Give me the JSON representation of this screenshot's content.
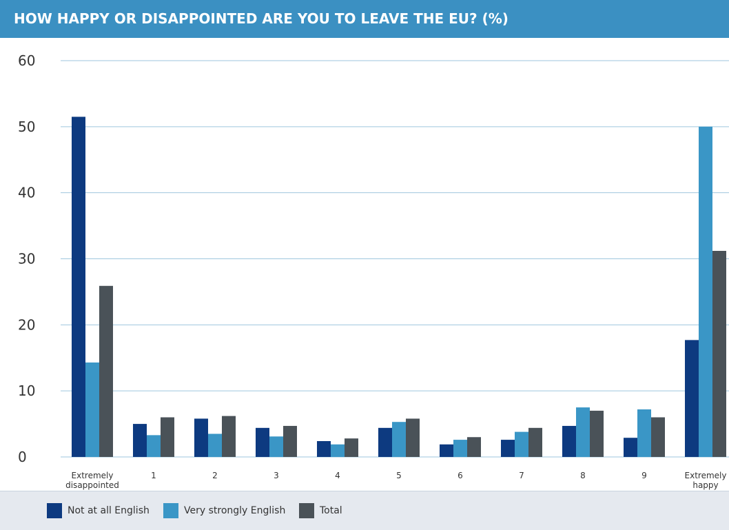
{
  "chart_data": {
    "type": "bar",
    "title": "HOW HAPPY OR DISAPPOINTED ARE YOU TO LEAVE THE EU? (%)",
    "categories": [
      "Extremely disappointed",
      "1",
      "2",
      "3",
      "4",
      "5",
      "6",
      "7",
      "8",
      "9",
      "Extremely happy"
    ],
    "series": [
      {
        "name": "Not at all English",
        "color": "#0d3a80",
        "values": [
          51.5,
          5.0,
          5.8,
          4.4,
          2.4,
          4.4,
          1.9,
          2.6,
          4.7,
          2.9,
          17.7
        ]
      },
      {
        "name": "Very strongly English",
        "color": "#3a96c6",
        "values": [
          14.3,
          3.3,
          3.5,
          3.1,
          1.9,
          5.3,
          2.6,
          3.8,
          7.5,
          7.2,
          50.0
        ]
      },
      {
        "name": "Total",
        "color": "#4a5258",
        "values": [
          25.9,
          6.0,
          6.2,
          4.7,
          2.8,
          5.8,
          3.0,
          4.4,
          7.0,
          6.0,
          31.2
        ]
      }
    ],
    "ylim": [
      0,
      60
    ],
    "yticks": [
      0,
      10,
      20,
      30,
      40,
      50,
      60
    ],
    "grid": true,
    "legend": "bottom"
  }
}
